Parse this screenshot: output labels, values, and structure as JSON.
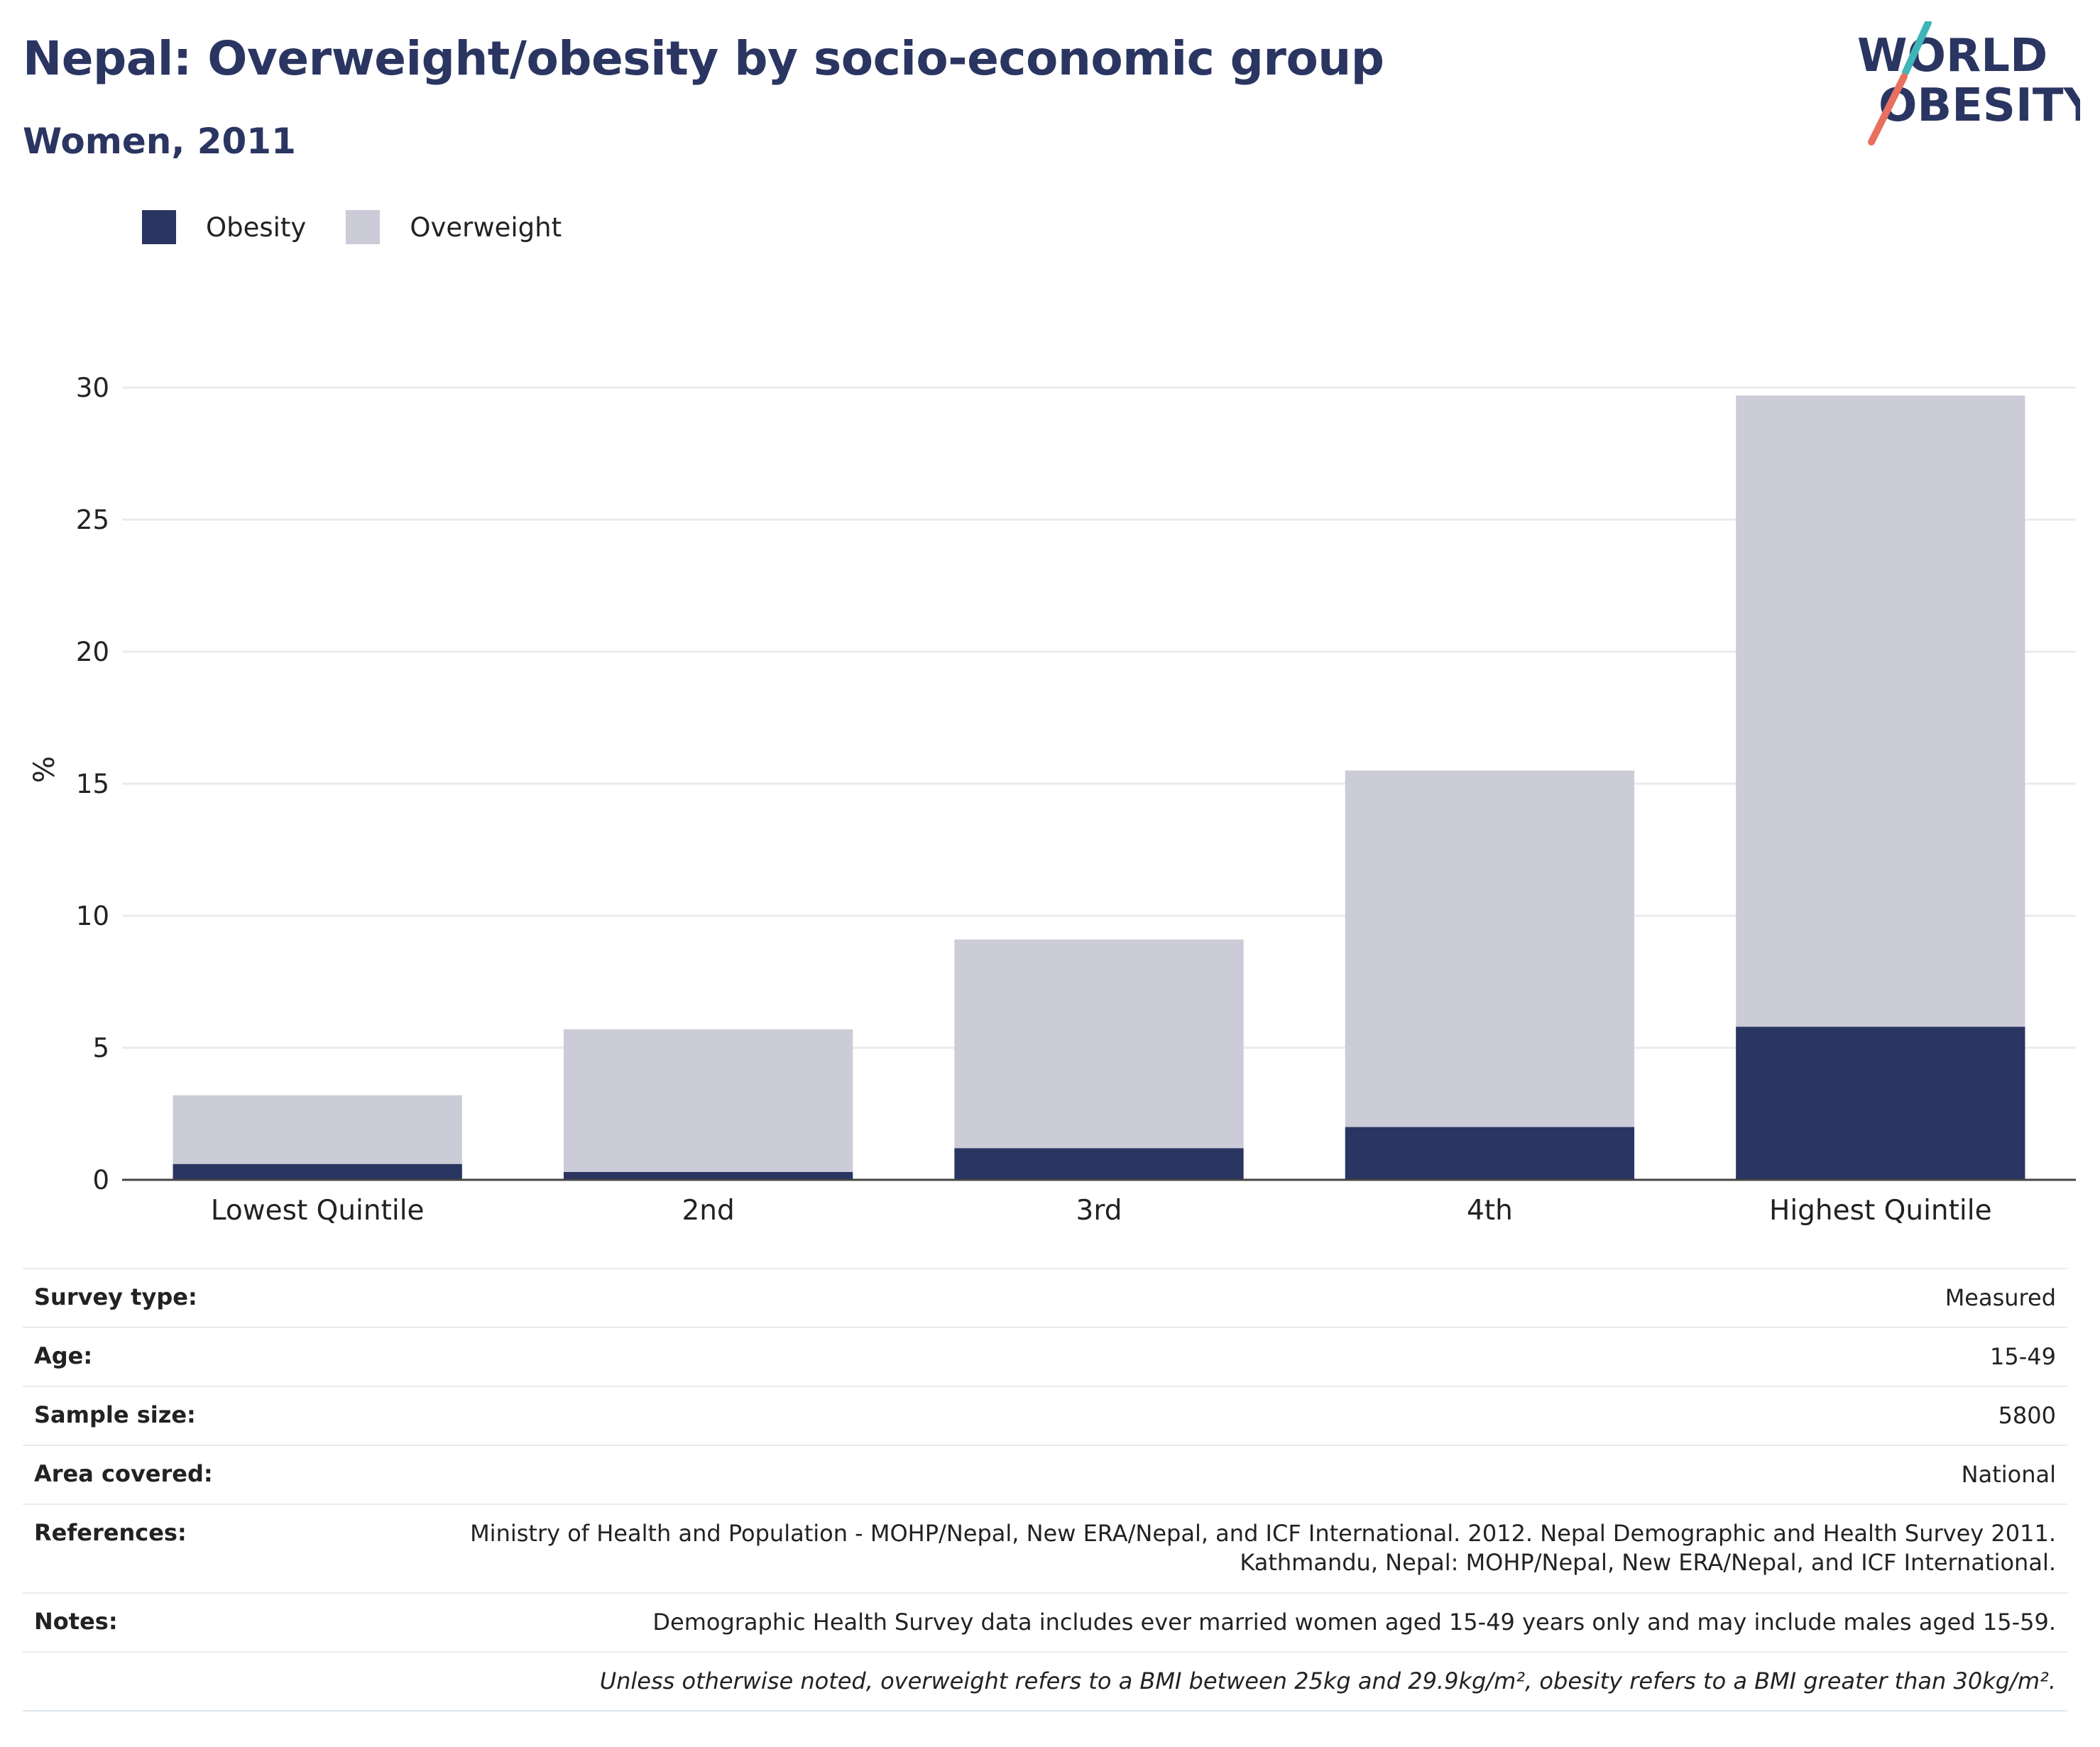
{
  "header": {
    "title": "Nepal: Overweight/obesity by socio-economic group",
    "subtitle": "Women, 2011"
  },
  "logo": {
    "line1": "WORLD",
    "line2": "OBESITY",
    "colors": {
      "text": "#2a3561",
      "slash_teal": "#3fb4b9",
      "slash_coral": "#e8705e"
    }
  },
  "legend": {
    "items": [
      {
        "label": "Obesity",
        "color": "#2a3561"
      },
      {
        "label": "Overweight",
        "color": "#cbccd7"
      }
    ]
  },
  "chart_data": {
    "type": "bar",
    "stacked": true,
    "categories": [
      "Lowest Quintile",
      "2nd",
      "3rd",
      "4th",
      "Highest Quintile"
    ],
    "series": [
      {
        "name": "Obesity",
        "values": [
          0.6,
          0.3,
          1.2,
          2.0,
          5.8
        ],
        "color": "#2a3561"
      },
      {
        "name": "Overweight",
        "values": [
          2.6,
          5.4,
          7.9,
          13.5,
          23.9
        ],
        "color": "#cbccd7"
      }
    ],
    "ylabel": "%",
    "xlabel": "",
    "ylim": [
      0,
      30
    ],
    "yticks": [
      0,
      5,
      10,
      15,
      20,
      25,
      30
    ],
    "grid": true,
    "legend_position": "top-left"
  },
  "meta": {
    "survey_type": {
      "label": "Survey type:",
      "value": "Measured"
    },
    "age": {
      "label": "Age:",
      "value": "15-49"
    },
    "sample_size": {
      "label": "Sample size:",
      "value": "5800"
    },
    "area_covered": {
      "label": "Area covered:",
      "value": "National"
    },
    "references": {
      "label": "References:",
      "value": "Ministry of Health and Population - MOHP/Nepal, New ERA/Nepal, and ICF International. 2012. Nepal Demographic and Health Survey 2011. Kathmandu, Nepal: MOHP/Nepal, New ERA/Nepal, and ICF International."
    },
    "notes": {
      "label": "Notes:",
      "value": "Demographic Health Survey data includes ever married women aged 15-49 years only and may include males aged 15-59."
    },
    "footnote": "Unless otherwise noted, overweight refers to a BMI between 25kg and 29.9kg/m², obesity refers to a BMI greater than 30kg/m²."
  }
}
